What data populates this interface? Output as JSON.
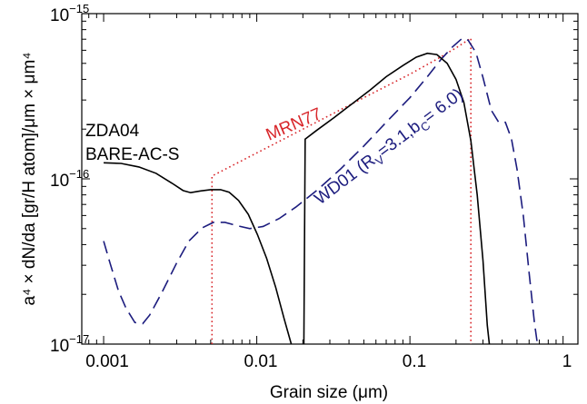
{
  "chart_data": {
    "type": "line",
    "title": "",
    "xlabel": "Grain size (μm)",
    "ylabel": "a⁴ × dN/da [gr/H atom]/μm × μm⁴",
    "xscale": "log",
    "yscale": "log",
    "xlim": [
      0.00072,
      1.25
    ],
    "ylim": [
      1e-17,
      1e-15
    ],
    "x_tick_labels": [
      "0.001",
      "0.01",
      "0.1",
      "1"
    ],
    "x_tick_values": [
      0.001,
      0.01,
      0.1,
      1
    ],
    "y_tick_labels": [
      {
        "base": "10",
        "exp": "−17",
        "value": 1e-17
      },
      {
        "base": "10",
        "exp": "−16",
        "value": 1e-16
      },
      {
        "base": "10",
        "exp": "−15",
        "value": 1e-15
      }
    ],
    "grid": false,
    "legend": "none",
    "series": [
      {
        "id": "zda04",
        "color": "#000000",
        "dash": "solid",
        "points": [
          [
            0.001,
            1.25e-16
          ],
          [
            0.0013,
            1.24e-16
          ],
          [
            0.0017,
            1.18e-16
          ],
          [
            0.0022,
            1.08e-16
          ],
          [
            0.0028,
            9.4e-17
          ],
          [
            0.0033,
            8.5e-17
          ],
          [
            0.0037,
            8.25e-17
          ],
          [
            0.0043,
            8.45e-17
          ],
          [
            0.005,
            8.6e-17
          ],
          [
            0.0058,
            8.6e-17
          ],
          [
            0.0066,
            8.3e-17
          ],
          [
            0.0076,
            7.4e-17
          ],
          [
            0.0088,
            6.1e-17
          ],
          [
            0.0101,
            4.6e-17
          ],
          [
            0.0116,
            3.3e-17
          ],
          [
            0.0133,
            2.2e-17
          ],
          [
            0.0151,
            1.42e-17
          ],
          [
            0.0168,
            1e-17
          ],
          null,
          [
            0.0203,
            1e-17
          ],
          [
            0.0207,
            1.74e-16
          ],
          [
            0.0245,
            1.96e-16
          ],
          [
            0.032,
            2.35e-16
          ],
          [
            0.042,
            2.85e-16
          ],
          [
            0.055,
            3.45e-16
          ],
          [
            0.07,
            4.15e-16
          ],
          [
            0.09,
            4.85e-16
          ],
          [
            0.11,
            5.45e-16
          ],
          [
            0.13,
            5.75e-16
          ],
          [
            0.15,
            5.65e-16
          ],
          [
            0.175,
            5e-16
          ],
          [
            0.2,
            4e-16
          ],
          [
            0.225,
            2.9e-16
          ],
          [
            0.25,
            1.7e-16
          ],
          [
            0.275,
            8e-17
          ],
          [
            0.3,
            3.2e-17
          ],
          [
            0.32,
            1.3e-17
          ],
          [
            0.33,
            1e-17
          ]
        ]
      },
      {
        "id": "mrn77",
        "color": "#d8262a",
        "dash": "dotted",
        "points": [
          [
            0.0051,
            1e-17
          ],
          [
            0.0051,
            1.04e-16
          ],
          [
            0.018,
            1.9e-16
          ],
          [
            0.05,
            3.1e-16
          ],
          [
            0.1,
            4.3e-16
          ],
          [
            0.15,
            5.3e-16
          ],
          [
            0.2,
            6.2e-16
          ],
          [
            0.25,
            7.1e-16
          ],
          [
            0.25,
            1e-17
          ]
        ]
      },
      {
        "id": "wd01",
        "color": "#1c1c7e",
        "dash": "dashed",
        "points": [
          [
            0.001,
            4.2e-17
          ],
          [
            0.0011,
            3.1e-17
          ],
          [
            0.00125,
            2.1e-17
          ],
          [
            0.0014,
            1.65e-17
          ],
          [
            0.0016,
            1.35e-17
          ],
          [
            0.0018,
            1.33e-17
          ],
          [
            0.002,
            1.5e-17
          ],
          [
            0.0024,
            2.05e-17
          ],
          [
            0.003,
            3.1e-17
          ],
          [
            0.0036,
            4.2e-17
          ],
          [
            0.0044,
            5.05e-17
          ],
          [
            0.0052,
            5.45e-17
          ],
          [
            0.0062,
            5.45e-17
          ],
          [
            0.0075,
            5.2e-17
          ],
          [
            0.009,
            5e-17
          ],
          [
            0.011,
            5.15e-17
          ],
          [
            0.014,
            5.75e-17
          ],
          [
            0.018,
            6.75e-17
          ],
          [
            0.025,
            8.6e-17
          ],
          [
            0.035,
            1.14e-16
          ],
          [
            0.05,
            1.58e-16
          ],
          [
            0.07,
            2.2e-16
          ],
          [
            0.1,
            3.1e-16
          ],
          [
            0.13,
            4.15e-16
          ],
          [
            0.16,
            5.3e-16
          ],
          [
            0.19,
            6.3e-16
          ],
          [
            0.22,
            7.1e-16
          ],
          [
            0.24,
            6.9e-16
          ],
          [
            0.27,
            5.8e-16
          ],
          [
            0.3,
            4.1e-16
          ],
          [
            0.34,
            2.6e-16
          ],
          [
            0.38,
            2.2e-16
          ],
          [
            0.42,
            2.2e-16
          ],
          [
            0.46,
            1.75e-16
          ],
          [
            0.5,
            1.15e-16
          ],
          [
            0.55,
            6e-17
          ],
          [
            0.6,
            2.7e-17
          ],
          [
            0.65,
            1.35e-17
          ],
          [
            0.68,
            1e-17
          ]
        ]
      }
    ],
    "annotations": {
      "zda_line1": "ZDA04",
      "zda_line2": "BARE-AC-S",
      "mrn": "MRN77",
      "wd01_name": "WD01 (R",
      "wd01_rv_sub": "V",
      "wd01_mid": "=3.1,b",
      "wd01_bc_sub": "C",
      "wd01_end": "= 6.0)",
      "mrn_color": "#d8262a",
      "wd01_color": "#1c1c7e"
    }
  }
}
